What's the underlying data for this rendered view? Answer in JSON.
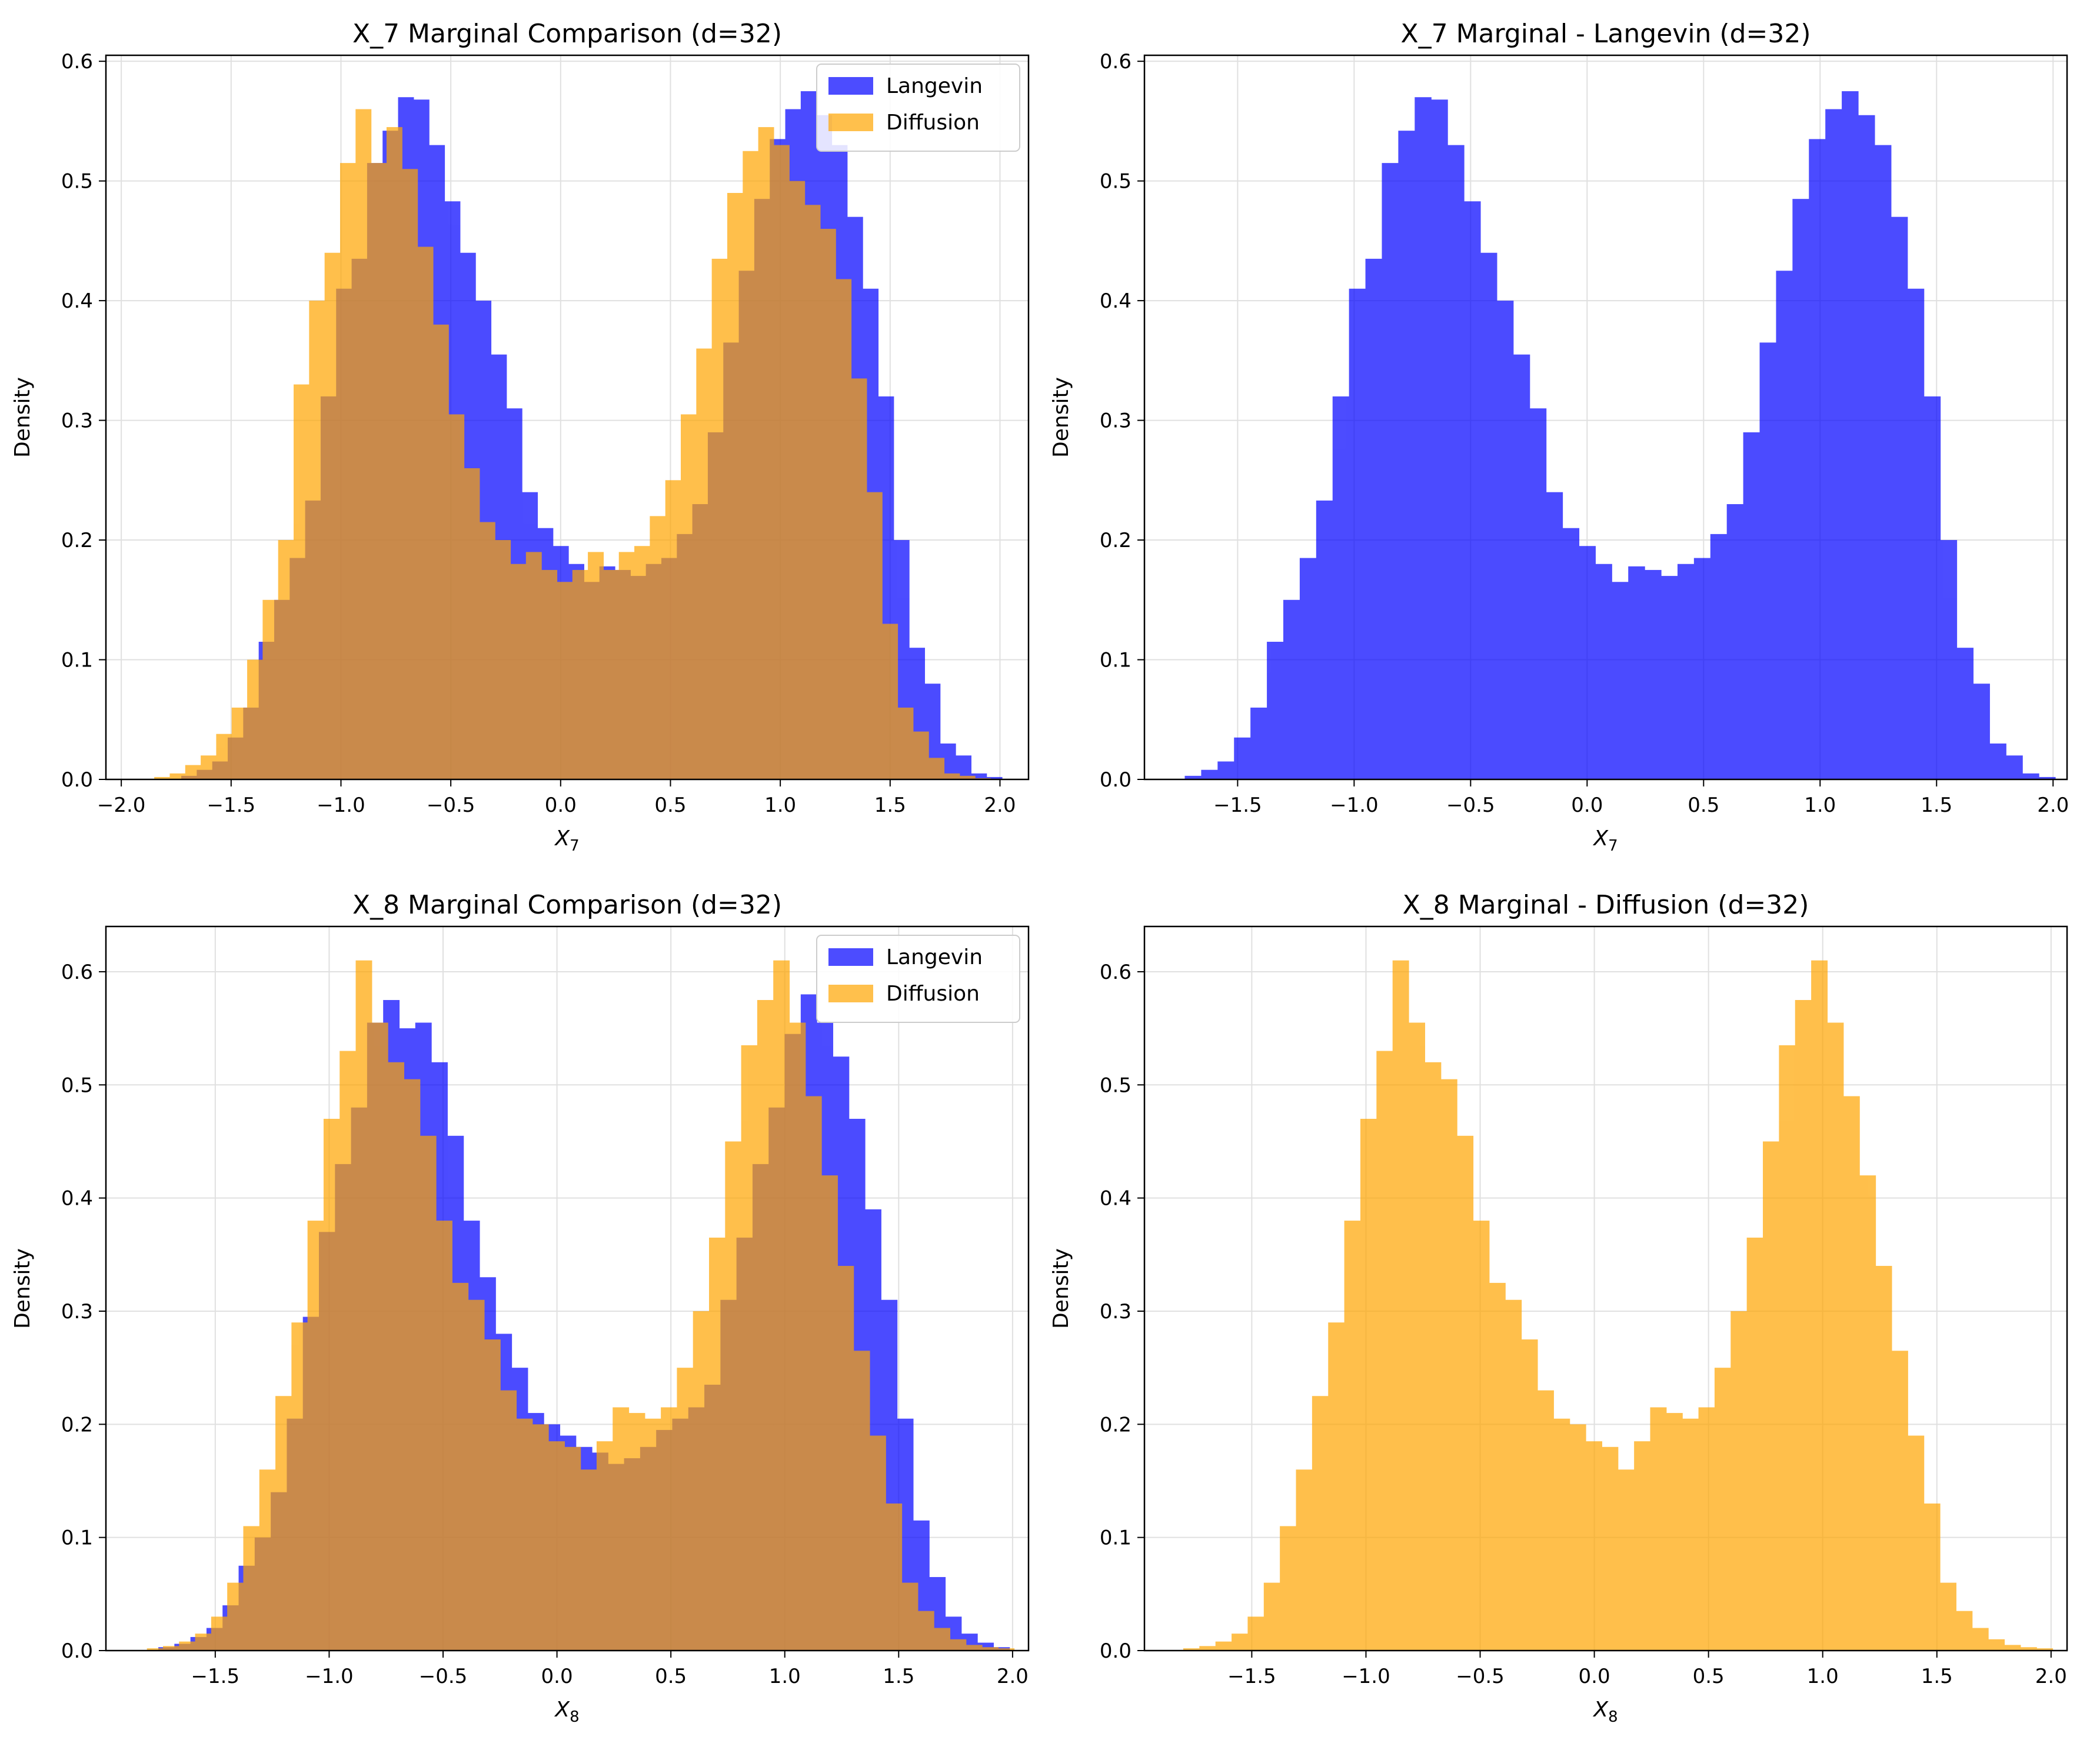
{
  "colors": {
    "langevin": "#0000ff",
    "diffusion": "#ffa500",
    "grid": "#e0e0e0",
    "axes": "#000000"
  },
  "chart_data": [
    {
      "type": "bar",
      "histtype": "overlaid-histogram",
      "title": "X_7 Marginal Comparison (d=32)",
      "xlabel": "X",
      "xlabel_sub": "7",
      "ylabel": "Density",
      "xlim": [
        -2.07,
        2.13
      ],
      "ylim": [
        0,
        0.605
      ],
      "xticks": [
        -2.0,
        -1.5,
        -1.0,
        -0.5,
        0.0,
        0.5,
        1.0,
        1.5,
        2.0
      ],
      "xtick_labels": [
        "−2.0",
        "−1.5",
        "−1.0",
        "−0.5",
        "0.0",
        "0.5",
        "1.0",
        "1.5",
        "2.0"
      ],
      "yticks": [
        0,
        0.1,
        0.2,
        0.3,
        0.4,
        0.5,
        0.6
      ],
      "ytick_labels": [
        "0.0",
        "0.1",
        "0.2",
        "0.3",
        "0.4",
        "0.5",
        "0.6"
      ],
      "grid": true,
      "legend": "upper right",
      "series": [
        {
          "name": "Langevin",
          "color": "#0000ff",
          "alpha": 0.7,
          "bin_start": -1.727,
          "bin_width": 0.0705,
          "values": [
            0.003,
            0.008,
            0.015,
            0.035,
            0.06,
            0.115,
            0.15,
            0.185,
            0.233,
            0.32,
            0.41,
            0.435,
            0.515,
            0.542,
            0.57,
            0.568,
            0.53,
            0.483,
            0.44,
            0.4,
            0.355,
            0.31,
            0.24,
            0.21,
            0.195,
            0.18,
            0.165,
            0.178,
            0.175,
            0.17,
            0.18,
            0.185,
            0.205,
            0.23,
            0.29,
            0.365,
            0.425,
            0.485,
            0.535,
            0.56,
            0.575,
            0.555,
            0.53,
            0.47,
            0.41,
            0.32,
            0.2,
            0.11,
            0.08,
            0.03,
            0.02,
            0.005,
            0.002
          ]
        },
        {
          "name": "Diffusion",
          "color": "#ffa500",
          "alpha": 0.7,
          "bin_start": -1.85,
          "bin_width": 0.0705,
          "values": [
            0.002,
            0.005,
            0.012,
            0.02,
            0.038,
            0.06,
            0.1,
            0.15,
            0.2,
            0.33,
            0.4,
            0.44,
            0.515,
            0.56,
            0.515,
            0.545,
            0.51,
            0.445,
            0.38,
            0.305,
            0.26,
            0.215,
            0.2,
            0.18,
            0.19,
            0.175,
            0.165,
            0.175,
            0.19,
            0.175,
            0.19,
            0.195,
            0.22,
            0.25,
            0.305,
            0.36,
            0.435,
            0.49,
            0.525,
            0.545,
            0.53,
            0.5,
            0.48,
            0.46,
            0.418,
            0.335,
            0.24,
            0.13,
            0.06,
            0.04,
            0.018,
            0.005,
            0.003,
            0.001
          ]
        }
      ]
    },
    {
      "type": "bar",
      "histtype": "histogram",
      "title": "X_7 Marginal - Langevin (d=32)",
      "xlabel": "X",
      "xlabel_sub": "7",
      "ylabel": "Density",
      "xlim": [
        -1.9,
        2.06
      ],
      "ylim": [
        0,
        0.605
      ],
      "xticks": [
        -1.5,
        -1.0,
        -0.5,
        0.0,
        0.5,
        1.0,
        1.5,
        2.0
      ],
      "xtick_labels": [
        "−1.5",
        "−1.0",
        "−0.5",
        "0.0",
        "0.5",
        "1.0",
        "1.5",
        "2.0"
      ],
      "yticks": [
        0,
        0.1,
        0.2,
        0.3,
        0.4,
        0.5,
        0.6
      ],
      "ytick_labels": [
        "0.0",
        "0.1",
        "0.2",
        "0.3",
        "0.4",
        "0.5",
        "0.6"
      ],
      "grid": true,
      "legend": "none",
      "series": [
        {
          "name": "Langevin",
          "color": "#0000ff",
          "alpha": 0.7,
          "bin_start": -1.727,
          "bin_width": 0.0705,
          "values": [
            0.003,
            0.008,
            0.015,
            0.035,
            0.06,
            0.115,
            0.15,
            0.185,
            0.233,
            0.32,
            0.41,
            0.435,
            0.515,
            0.542,
            0.57,
            0.568,
            0.53,
            0.483,
            0.44,
            0.4,
            0.355,
            0.31,
            0.24,
            0.21,
            0.195,
            0.18,
            0.165,
            0.178,
            0.175,
            0.17,
            0.18,
            0.185,
            0.205,
            0.23,
            0.29,
            0.365,
            0.425,
            0.485,
            0.535,
            0.56,
            0.575,
            0.555,
            0.53,
            0.47,
            0.41,
            0.32,
            0.2,
            0.11,
            0.08,
            0.03,
            0.02,
            0.005,
            0.002
          ]
        }
      ]
    },
    {
      "type": "bar",
      "histtype": "overlaid-histogram",
      "title": "X_8 Marginal Comparison (d=32)",
      "xlabel": "X",
      "xlabel_sub": "8",
      "ylabel": "Density",
      "xlim": [
        -1.98,
        2.07
      ],
      "ylim": [
        0,
        0.64
      ],
      "xticks": [
        -1.5,
        -1.0,
        -0.5,
        0.0,
        0.5,
        1.0,
        1.5,
        2.0
      ],
      "xtick_labels": [
        "−1.5",
        "−1.0",
        "−0.5",
        "0.0",
        "0.5",
        "1.0",
        "1.5",
        "2.0"
      ],
      "yticks": [
        0,
        0.1,
        0.2,
        0.3,
        0.4,
        0.5,
        0.6
      ],
      "ytick_labels": [
        "0.0",
        "0.1",
        "0.2",
        "0.3",
        "0.4",
        "0.5",
        "0.6"
      ],
      "grid": true,
      "legend": "upper right",
      "series": [
        {
          "name": "Langevin",
          "color": "#0000ff",
          "alpha": 0.7,
          "bin_start": -1.75,
          "bin_width": 0.0705,
          "values": [
            0.003,
            0.006,
            0.012,
            0.02,
            0.04,
            0.075,
            0.1,
            0.14,
            0.205,
            0.295,
            0.37,
            0.43,
            0.48,
            0.555,
            0.575,
            0.55,
            0.555,
            0.52,
            0.455,
            0.38,
            0.33,
            0.28,
            0.25,
            0.21,
            0.2,
            0.19,
            0.18,
            0.175,
            0.165,
            0.17,
            0.18,
            0.195,
            0.205,
            0.215,
            0.235,
            0.31,
            0.365,
            0.43,
            0.48,
            0.545,
            0.58,
            0.555,
            0.525,
            0.47,
            0.39,
            0.31,
            0.205,
            0.115,
            0.065,
            0.03,
            0.015,
            0.007,
            0.003
          ]
        },
        {
          "name": "Diffusion",
          "color": "#ffa500",
          "alpha": 0.7,
          "bin_start": -1.8,
          "bin_width": 0.0705,
          "values": [
            0.002,
            0.004,
            0.008,
            0.015,
            0.03,
            0.06,
            0.11,
            0.16,
            0.225,
            0.29,
            0.38,
            0.47,
            0.53,
            0.61,
            0.555,
            0.52,
            0.505,
            0.455,
            0.38,
            0.325,
            0.31,
            0.275,
            0.23,
            0.205,
            0.2,
            0.185,
            0.18,
            0.16,
            0.185,
            0.215,
            0.21,
            0.205,
            0.215,
            0.25,
            0.3,
            0.365,
            0.45,
            0.535,
            0.575,
            0.61,
            0.555,
            0.49,
            0.42,
            0.34,
            0.265,
            0.19,
            0.13,
            0.06,
            0.035,
            0.02,
            0.01,
            0.005,
            0.003,
            0.002
          ]
        }
      ]
    },
    {
      "type": "bar",
      "histtype": "histogram",
      "title": "X_8 Marginal - Diffusion (d=32)",
      "xlabel": "X",
      "xlabel_sub": "8",
      "ylabel": "Density",
      "xlim": [
        -1.97,
        2.07
      ],
      "ylim": [
        0,
        0.64
      ],
      "xticks": [
        -1.5,
        -1.0,
        -0.5,
        0.0,
        0.5,
        1.0,
        1.5,
        2.0
      ],
      "xtick_labels": [
        "−1.5",
        "−1.0",
        "−0.5",
        "0.0",
        "0.5",
        "1.0",
        "1.5",
        "2.0"
      ],
      "yticks": [
        0,
        0.1,
        0.2,
        0.3,
        0.4,
        0.5,
        0.6
      ],
      "ytick_labels": [
        "0.0",
        "0.1",
        "0.2",
        "0.3",
        "0.4",
        "0.5",
        "0.6"
      ],
      "grid": true,
      "legend": "none",
      "series": [
        {
          "name": "Diffusion",
          "color": "#ffa500",
          "alpha": 0.7,
          "bin_start": -1.8,
          "bin_width": 0.0705,
          "values": [
            0.002,
            0.004,
            0.008,
            0.015,
            0.03,
            0.06,
            0.11,
            0.16,
            0.225,
            0.29,
            0.38,
            0.47,
            0.53,
            0.61,
            0.555,
            0.52,
            0.505,
            0.455,
            0.38,
            0.325,
            0.31,
            0.275,
            0.23,
            0.205,
            0.2,
            0.185,
            0.18,
            0.16,
            0.185,
            0.215,
            0.21,
            0.205,
            0.215,
            0.25,
            0.3,
            0.365,
            0.45,
            0.535,
            0.575,
            0.61,
            0.555,
            0.49,
            0.42,
            0.34,
            0.265,
            0.19,
            0.13,
            0.06,
            0.035,
            0.02,
            0.01,
            0.005,
            0.003,
            0.002
          ]
        }
      ]
    }
  ]
}
